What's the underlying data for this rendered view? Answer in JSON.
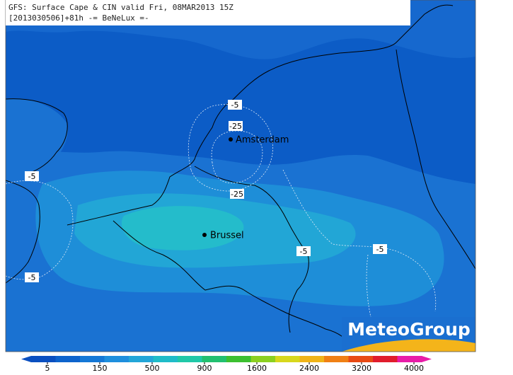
{
  "header": {
    "line1": "GFS: Surface Cape & CIN valid Fri, 08MAR2013 15Z",
    "line2": "[2013030506]+81h -= BeNeLux =-"
  },
  "cities": [
    {
      "label": "Amsterdam"
    },
    {
      "label": "Brussel"
    }
  ],
  "contour_labels": [
    -5,
    -25,
    -5,
    -25,
    -5,
    -5,
    -5
  ],
  "logo": "MeteoGroup",
  "colorbar": {
    "ticks": [
      5,
      150,
      500,
      900,
      1600,
      2400,
      3200,
      4000
    ],
    "colors": [
      "#0a4fc0",
      "#0d63cc",
      "#1478d6",
      "#1e8fdd",
      "#22a6d8",
      "#1fbcc8",
      "#20c8a8",
      "#22c070",
      "#3cc030",
      "#8cd020",
      "#d8d81c",
      "#f0b418",
      "#f08014",
      "#e84a14",
      "#e01c2c",
      "#e81ca8"
    ]
  }
}
